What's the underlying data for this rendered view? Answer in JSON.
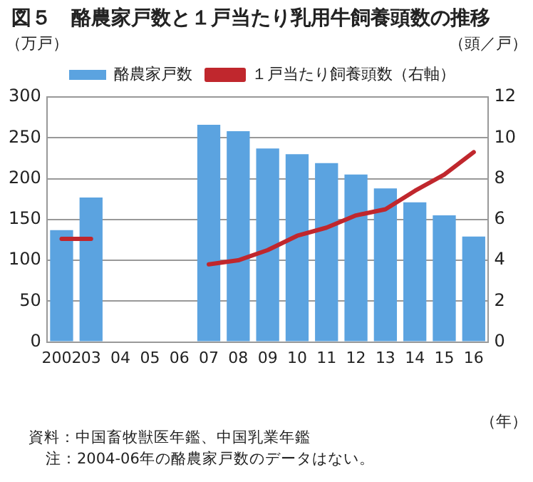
{
  "chart_data": {
    "type": "bar",
    "title": "図５　酪農家戸数と１戸当たり乳用牛飼養頭数の推移",
    "xlabel": "（年）",
    "ylabel": "（万戸）",
    "y2label": "（頭／戸）",
    "categories": [
      "2002",
      "03",
      "04",
      "05",
      "06",
      "07",
      "08",
      "09",
      "10",
      "11",
      "12",
      "13",
      "14",
      "15",
      "16"
    ],
    "series": [
      {
        "name": "酪農家戸数",
        "color": "#5ba3e0",
        "values": [
          137,
          177,
          null,
          null,
          null,
          266,
          258,
          237,
          230,
          219,
          205,
          188,
          171,
          155,
          129
        ]
      },
      {
        "name": "１戸当たり飼養頭数（右軸）",
        "type": "line",
        "axis": "y2",
        "color": "#c0272d",
        "values": [
          5.05,
          5.05,
          null,
          null,
          null,
          3.8,
          4.0,
          4.5,
          5.2,
          5.6,
          6.2,
          6.5,
          7.4,
          8.2,
          9.3
        ]
      }
    ],
    "ylim": [
      0,
      300
    ],
    "yticks": [
      0,
      50,
      100,
      150,
      200,
      250,
      300
    ],
    "y2lim": [
      0,
      12
    ],
    "y2ticks": [
      0,
      2,
      4,
      6,
      8,
      10,
      12
    ],
    "grid": "y",
    "legend": "top",
    "marker": "none",
    "line_style": "solid",
    "annotations": [
      "資料：中国畜牧獣医年鑑、中国乳業年鑑",
      "注：2004-06年の酪農家戸数のデータはない。"
    ]
  }
}
